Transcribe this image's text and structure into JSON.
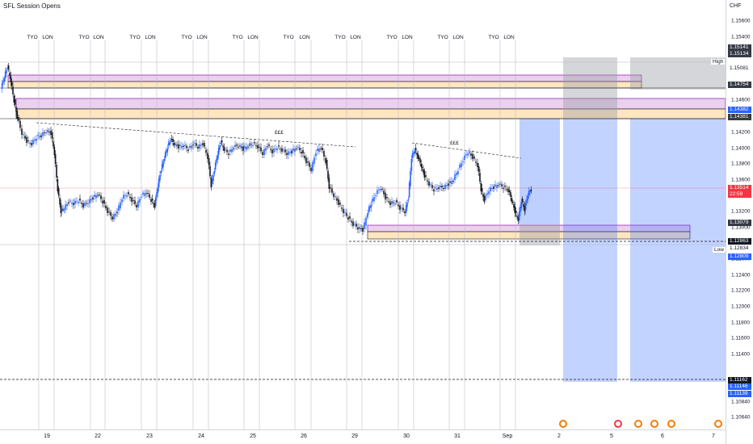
{
  "indicator": {
    "title": "SFL Session Opens"
  },
  "price_axis": {
    "currency": "CHF",
    "ticks": [
      "1.15600",
      "1.15400",
      "1.15200",
      "1.15000",
      "1.14600",
      "1.14200",
      "1.14000",
      "1.13800",
      "1.13600",
      "1.13200",
      "1.13000",
      "1.12600",
      "1.12400",
      "1.12200",
      "1.12000",
      "1.11800",
      "1.11600",
      "1.11400",
      "1.10840",
      "1.10640"
    ],
    "tags": [
      {
        "text": "1.15141",
        "bg": "#363a45",
        "fg": "#ffffff"
      },
      {
        "text": "1.15134",
        "bg": "#363a45",
        "fg": "#ffffff"
      },
      {
        "text": "1.15081",
        "bg": "#ffffff",
        "fg": "#131722"
      },
      {
        "text": "1.14754",
        "bg": "#363a45",
        "fg": "#ffffff"
      },
      {
        "text": "1.14382",
        "bg": "#2962ff",
        "fg": "#ffffff"
      },
      {
        "text": "1.14381",
        "bg": "#363a45",
        "fg": "#ffffff"
      },
      {
        "text": "1.13514",
        "bg": "#f23645",
        "fg": "#ffffff"
      },
      {
        "text": "22:59",
        "bg": "#f23645",
        "fg": "#ffffff"
      },
      {
        "text": "1.13079",
        "bg": "#363a45",
        "fg": "#ffffff"
      },
      {
        "text": "1.12863",
        "bg": "#131722",
        "fg": "#ffffff"
      },
      {
        "text": "1.12834",
        "bg": "#ffffff",
        "fg": "#131722"
      },
      {
        "text": "1.12809",
        "bg": "#2962ff",
        "fg": "#ffffff"
      },
      {
        "text": "1.11162",
        "bg": "#131722",
        "fg": "#ffffff"
      },
      {
        "text": "1.11146",
        "bg": "#2962ff",
        "fg": "#ffffff"
      },
      {
        "text": "1.11139",
        "bg": "#2962ff",
        "fg": "#ffffff"
      }
    ],
    "high_label": "High",
    "low_label": "Low"
  },
  "time_axis": {
    "dates": [
      "19",
      "22",
      "23",
      "24",
      "25",
      "26",
      "29",
      "30",
      "31",
      "Sep",
      "2",
      "5",
      "6",
      "7"
    ]
  },
  "sessions": {
    "tyo": "TYO",
    "lon": "LON"
  },
  "annotations": {
    "liquidity_1": "£££",
    "liquidity_2": "£££"
  },
  "colors": {
    "bull": "#2962ff",
    "bear": "#131722",
    "supply_zone": "#e1bee7",
    "demand_zone": "#ffe0b2",
    "projection_blue": "#2962ff",
    "projection_grey": "#9598a1"
  },
  "chart_data": {
    "type": "candlestick",
    "symbol_currency": "CHF",
    "current_price": 1.13514,
    "session_high": 1.15081,
    "session_low": 1.12834,
    "key_levels": [
      1.15141,
      1.15134,
      1.14754,
      1.14382,
      1.14381,
      1.13079,
      1.12863,
      1.12809,
      1.11162,
      1.11146,
      1.11139
    ],
    "x_labels": [
      "19",
      "22",
      "23",
      "24",
      "25",
      "26",
      "29",
      "30",
      "31",
      "Sep",
      "2",
      "5",
      "6",
      "7"
    ]
  }
}
